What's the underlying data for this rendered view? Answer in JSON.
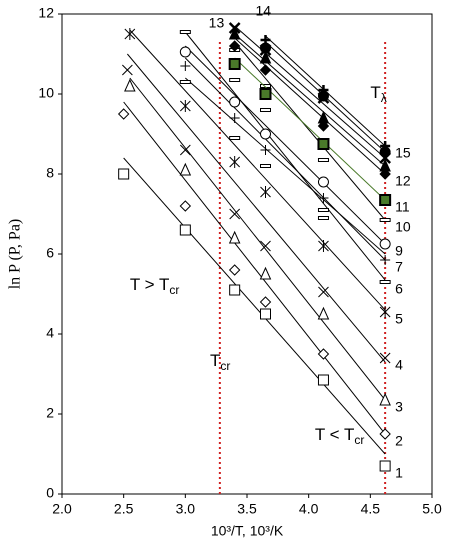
{
  "chart_data": {
    "type": "scatter",
    "xlabel": "10³/T, 10³/K",
    "ylabel": "ln P (P, Pa)",
    "xlim": [
      2,
      5
    ],
    "xticks": [
      {
        "value": 2,
        "label": "2.0"
      },
      {
        "value": 2.5,
        "label": "2.5"
      },
      {
        "value": 3,
        "label": "3.0"
      },
      {
        "value": 3.5,
        "label": "3.5"
      },
      {
        "value": 4,
        "label": "4.0"
      },
      {
        "value": 4.5,
        "label": "4.5"
      },
      {
        "value": 5,
        "label": "5.0"
      }
    ],
    "ylim": [
      0,
      12
    ],
    "yticks": [
      0,
      2,
      4,
      6,
      8,
      10,
      12
    ],
    "vlines": {
      "x": [
        3.28,
        4.62
      ],
      "color": "#d02020"
    },
    "annotations": [
      {
        "text": "T > T",
        "sub": "cr",
        "x": 2.55,
        "y": 5.2
      },
      {
        "text": "T",
        "sub": "cr",
        "x": 3.2,
        "y": 3.3
      },
      {
        "text": "T < T",
        "sub": "cr",
        "x": 4.05,
        "y": 1.45
      },
      {
        "text": "T",
        "sub": "λ",
        "x": 4.5,
        "y": 10.0
      }
    ],
    "series": [
      {
        "name": "1",
        "marker": "square",
        "color": "#000",
        "x": [
          2.5,
          3.0,
          3.4,
          3.65,
          4.12,
          4.62
        ],
        "values": [
          8.0,
          6.6,
          5.1,
          4.5,
          2.85,
          0.7
        ],
        "fit_x": [
          2.5,
          4.62
        ],
        "fit_y": [
          8.4,
          1.0
        ]
      },
      {
        "name": "2",
        "marker": "diamond",
        "color": "#000",
        "x": [
          2.5,
          3.0,
          3.4,
          3.65,
          4.12,
          4.62
        ],
        "values": [
          9.5,
          7.2,
          5.6,
          4.8,
          3.5,
          1.5
        ],
        "fit_x": [
          2.5,
          4.62
        ],
        "fit_y": [
          9.8,
          1.5
        ]
      },
      {
        "name": "3",
        "marker": "triangle",
        "color": "#000",
        "x": [
          2.55,
          3.0,
          3.4,
          3.65,
          4.12,
          4.62
        ],
        "values": [
          10.2,
          8.1,
          6.4,
          5.5,
          4.5,
          2.35
        ],
        "fit_x": [
          2.55,
          4.62
        ],
        "fit_y": [
          10.4,
          2.35
        ]
      },
      {
        "name": "4",
        "marker": "x",
        "color": "#000",
        "x": [
          2.53,
          3.0,
          3.4,
          3.65,
          4.12,
          4.62
        ],
        "values": [
          10.6,
          8.6,
          7.0,
          6.2,
          5.05,
          3.4
        ],
        "fit_x": [
          2.53,
          4.62
        ],
        "fit_y": [
          11.0,
          3.3
        ]
      },
      {
        "name": "5",
        "marker": "asterisk",
        "color": "#000",
        "x": [
          2.55,
          3.0,
          3.4,
          3.65,
          4.12,
          4.62
        ],
        "values": [
          11.5,
          9.7,
          8.3,
          7.55,
          6.2,
          4.55
        ],
        "fit_x": [
          2.55,
          4.62
        ],
        "fit_y": [
          11.6,
          4.6
        ]
      },
      {
        "name": "6",
        "marker": "dash",
        "color": "#000",
        "x": [
          3.0,
          3.4,
          3.65,
          4.12,
          4.62
        ],
        "values": [
          11.55,
          10.35,
          9.6,
          7.1,
          5.3
        ],
        "fit_x": [
          3.0,
          4.62
        ],
        "fit_y": [
          11.55,
          5.35
        ]
      },
      {
        "name": "7",
        "marker": "plus",
        "color": "#000",
        "x": [
          3.0,
          3.4,
          3.65,
          4.12,
          4.62
        ],
        "values": [
          10.7,
          9.4,
          8.6,
          7.4,
          5.85
        ],
        "fit_x": [
          3.0,
          4.62
        ],
        "fit_y": [
          10.9,
          5.85
        ]
      },
      {
        "name": null,
        "marker": "dash",
        "color": "#000",
        "x": [
          3.0,
          3.4,
          3.65,
          4.12
        ],
        "values": [
          10.3,
          8.9,
          8.2,
          6.9
        ],
        "fit_x": [
          3.0,
          4.62
        ],
        "fit_y": [
          10.4,
          6.0
        ]
      },
      {
        "name": "9",
        "marker": "circle",
        "color": "#000",
        "x": [
          3.0,
          3.4,
          3.65,
          4.12,
          4.62
        ],
        "values": [
          11.05,
          9.8,
          9.0,
          7.8,
          6.25
        ],
        "fit_x": [
          3.0,
          4.62
        ],
        "fit_y": [
          11.2,
          6.25
        ]
      },
      {
        "name": "10",
        "marker": "dash",
        "color": "#000",
        "x": [
          3.4,
          3.65,
          4.12,
          4.62
        ],
        "values": [
          11.1,
          10.2,
          8.35,
          6.85
        ],
        "fit_x": [
          3.4,
          4.62
        ],
        "fit_y": [
          11.3,
          6.85
        ]
      },
      {
        "name": "11",
        "marker": "filled-square",
        "color": "#4a7a2a",
        "x": [
          3.4,
          3.65,
          4.12,
          4.62
        ],
        "values": [
          10.75,
          10.0,
          8.75,
          7.35
        ],
        "fit_x": [
          3.4,
          4.62
        ],
        "fit_y": [
          10.9,
          7.35
        ]
      },
      {
        "name": "12",
        "marker": "filled-diamond",
        "color": "#000",
        "x": [
          3.4,
          3.65,
          4.12,
          4.62
        ],
        "values": [
          11.2,
          10.6,
          9.2,
          8.0
        ],
        "fit_x": [
          3.4,
          4.62
        ],
        "fit_y": [
          11.4,
          8.0
        ]
      },
      {
        "name": null,
        "marker": "filled-triangle",
        "color": "#000",
        "x": [
          3.4,
          3.65,
          4.12,
          4.62
        ],
        "values": [
          11.5,
          10.9,
          9.4,
          8.2
        ],
        "fit_x": [
          3.4,
          4.62
        ],
        "fit_y": [
          11.5,
          8.2
        ]
      },
      {
        "name": "13",
        "marker": "bold-x",
        "color": "#000",
        "x": [
          3.4,
          3.65,
          4.12,
          4.62
        ],
        "values": [
          11.65,
          11.1,
          9.9,
          8.4
        ],
        "fit_x": [
          3.4,
          4.62
        ],
        "fit_y": [
          11.7,
          8.4
        ]
      },
      {
        "name": "14",
        "marker": "filled-circle",
        "color": "#000",
        "x": [
          3.65,
          4.12,
          4.62
        ],
        "values": [
          11.15,
          9.95,
          8.55
        ],
        "fit_x": [
          3.65,
          4.62
        ],
        "fit_y": [
          11.3,
          8.55
        ]
      },
      {
        "name": "15",
        "marker": "bold-plus",
        "color": "#000",
        "x": [
          3.65,
          4.12,
          4.62
        ],
        "values": [
          11.35,
          10.1,
          8.7
        ],
        "fit_x": [
          3.65,
          4.62
        ],
        "fit_y": [
          11.45,
          8.7
        ]
      }
    ]
  }
}
